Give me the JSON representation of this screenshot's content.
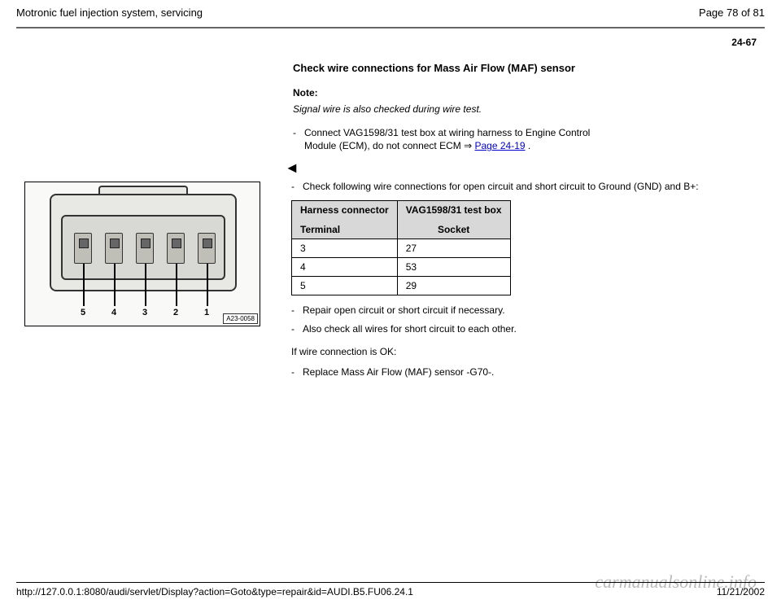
{
  "header": {
    "title": "Motronic fuel injection system, servicing",
    "page_info": "Page 78 of 81"
  },
  "page_ref": "24-67",
  "section": {
    "title": "Check wire connections for Mass Air Flow (MAF) sensor",
    "note_label": "Note:",
    "note_text": "Signal wire is also checked during wire test.",
    "step1_pre": "Connect VAG1598/31 test box at wiring harness to Engine Control Module (ECM), do not connect ECM ",
    "step1_arrow": "⇒",
    "step1_link": "Page 24-19",
    "step1_post": " ."
  },
  "lower": {
    "intro": "Check following wire connections for open circuit and short circuit to Ground (GND) and B+:",
    "table": {
      "col1_head": "Harness connector",
      "col1_sub": "Terminal",
      "col2_head": "VAG1598/31 test box",
      "col2_sub": "Socket",
      "rows": [
        {
          "t": "3",
          "s": "27"
        },
        {
          "t": "4",
          "s": "53"
        },
        {
          "t": "5",
          "s": "29"
        }
      ]
    },
    "repair": "Repair open circuit or short circuit if necessary.",
    "also_check": "Also check all wires for short circuit to each other.",
    "ok_line": "If wire connection is OK:",
    "replace": "Replace Mass Air Flow (MAF) sensor -G70-."
  },
  "figure": {
    "labels": [
      "5",
      "4",
      "3",
      "2",
      "1"
    ],
    "code": "A23-0058"
  },
  "footer": {
    "url": "http://127.0.0.1:8080/audi/servlet/Display?action=Goto&type=repair&id=AUDI.B5.FU06.24.1",
    "date": "11/21/2002"
  },
  "watermark": "carmanualsonline.info"
}
